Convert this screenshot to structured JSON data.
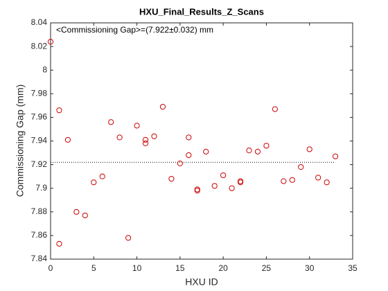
{
  "chart_data": {
    "type": "scatter",
    "title": "HXU_Final_Results_Z_Scans",
    "annotation": "<Commissioning Gap>=(7.922±0.032) mm",
    "x_label": "HXU ID",
    "y_label": "Commissioning Gap (mm)",
    "x": [
      0,
      1,
      1,
      2,
      3,
      4,
      5,
      6,
      7,
      8,
      9,
      10,
      11,
      11,
      12,
      13,
      14,
      15,
      16,
      16,
      17,
      17,
      18,
      19,
      20,
      21,
      22,
      22,
      23,
      24,
      25,
      26,
      27,
      28,
      29,
      30,
      31,
      32,
      33
    ],
    "values": [
      8.024,
      7.966,
      7.853,
      7.941,
      7.88,
      7.877,
      7.905,
      7.91,
      7.956,
      7.943,
      7.858,
      7.953,
      7.941,
      7.938,
      7.944,
      7.969,
      7.908,
      7.921,
      7.943,
      7.928,
      7.899,
      7.898,
      7.931,
      7.902,
      7.911,
      7.9,
      7.906,
      7.905,
      7.932,
      7.931,
      7.936,
      7.967,
      7.906,
      7.907,
      7.918,
      7.933,
      7.909,
      7.905,
      7.927
    ],
    "color": "#cc0000",
    "mean": 7.922,
    "xlim": [
      0,
      35
    ],
    "xticks": [
      0,
      5,
      10,
      15,
      20,
      25,
      30,
      35
    ],
    "ylim": [
      7.84,
      8.04
    ],
    "yticks": [
      7.84,
      7.86,
      7.88,
      7.9,
      7.92,
      7.94,
      7.96,
      7.98,
      8,
      8.02,
      8.04
    ],
    "grid": false
  }
}
